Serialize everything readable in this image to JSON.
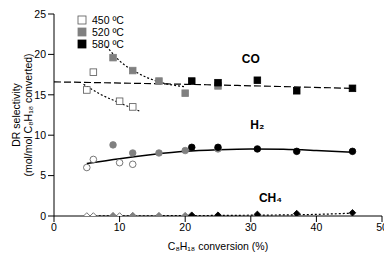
{
  "chart_data": {
    "type": "scatter",
    "x_label": "C₈H₁₈ conversion (%)",
    "y_label": [
      "DR selectivity",
      "(mol/mol C₈H₁₈ converted)"
    ],
    "xlim": [
      0,
      50
    ],
    "xticks": [
      0,
      10,
      20,
      30,
      40,
      50
    ],
    "ylim": [
      0,
      25
    ],
    "yticks": [
      0,
      5,
      10,
      15,
      20,
      25
    ],
    "grid": false,
    "legend": "top-left",
    "annotations": [
      "CO",
      "H₂",
      "CH₄"
    ],
    "series": [
      {
        "name": "450 ºC",
        "color": "#ffffff",
        "groups": [
          {
            "product": "CO",
            "marker": "square",
            "x": [
              5,
              6,
              10,
              12
            ],
            "y": [
              15.6,
              17.8,
              14.2,
              13.5
            ]
          },
          {
            "product": "H₂",
            "marker": "circle",
            "x": [
              5,
              6,
              10,
              12
            ],
            "y": [
              6.0,
              7.0,
              6.6,
              6.4
            ]
          },
          {
            "product": "CH₄",
            "marker": "diamond",
            "x": [
              5,
              6,
              10,
              12
            ],
            "y": [
              0,
              0,
              0,
              0
            ]
          }
        ]
      },
      {
        "name": "520 ºC",
        "color": "#808080",
        "groups": [
          {
            "product": "CO",
            "marker": "square",
            "x": [
              9,
              12,
              16,
              20,
              25
            ],
            "y": [
              19.6,
              18.0,
              16.7,
              15.2,
              16.1
            ]
          },
          {
            "product": "H₂",
            "marker": "circle",
            "x": [
              9,
              12,
              16,
              20,
              25
            ],
            "y": [
              8.8,
              7.8,
              7.8,
              8.1,
              8.3
            ]
          },
          {
            "product": "CH₄",
            "marker": "diamond",
            "x": [
              9,
              12,
              16,
              20,
              25
            ],
            "y": [
              0.05,
              0.05,
              0.05,
              0.05,
              0.05
            ]
          }
        ]
      },
      {
        "name": "580 ºC",
        "color": "#000000",
        "groups": [
          {
            "product": "CO",
            "marker": "square",
            "x": [
              21,
              25,
              31,
              37,
              45.5
            ],
            "y": [
              16.7,
              16.5,
              16.8,
              15.5,
              15.8
            ]
          },
          {
            "product": "H₂",
            "marker": "circle",
            "x": [
              21,
              25,
              31,
              37,
              45.5
            ],
            "y": [
              8.5,
              8.5,
              8.3,
              8.0,
              8.0
            ]
          },
          {
            "product": "CH₄",
            "marker": "diamond",
            "x": [
              21,
              25,
              31,
              37,
              45.5
            ],
            "y": [
              0.1,
              0.1,
              0.2,
              0.3,
              0.4
            ]
          }
        ]
      }
    ],
    "trend_lines": [
      {
        "line_style": "dashed",
        "color": "#000000",
        "x": [
          0,
          20,
          45.5
        ],
        "y": [
          16.6,
          16.3,
          15.8
        ]
      },
      {
        "line_style": "solid",
        "color": "#000000",
        "x": [
          5,
          10,
          15,
          20,
          25,
          30,
          35,
          40,
          45.5
        ],
        "y": [
          6.5,
          7.1,
          7.6,
          8.0,
          8.2,
          8.3,
          8.25,
          8.1,
          7.9
        ]
      },
      {
        "line_style": "dotted",
        "color": "#000000",
        "x": [
          5,
          20,
          30,
          40,
          45.5
        ],
        "y": [
          0,
          0.05,
          0.1,
          0.2,
          0.35
        ]
      },
      {
        "line_style": "dotted",
        "color": "#000000",
        "x": [
          4.5,
          7,
          10,
          13
        ],
        "y": [
          16.3,
          15.1,
          14.0,
          13.0
        ]
      },
      {
        "line_style": "dotted",
        "color": "#000000",
        "x": [
          8,
          10,
          13,
          16,
          20
        ],
        "y": [
          21,
          19.2,
          17.6,
          16.6,
          16.0
        ]
      }
    ]
  }
}
